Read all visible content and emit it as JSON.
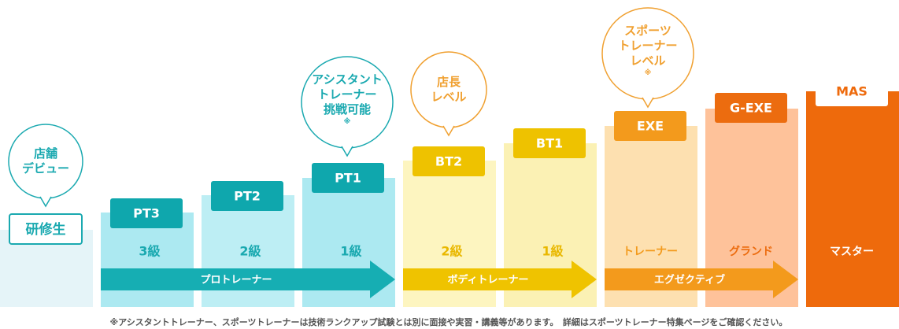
{
  "stages": [
    {
      "badge": "研修生"
    },
    {
      "badge": "PT3",
      "grade": "3級"
    },
    {
      "badge": "PT2",
      "grade": "2級"
    },
    {
      "badge": "PT1",
      "grade": "1級"
    },
    {
      "badge": "BT2",
      "grade": "2級"
    },
    {
      "badge": "BT1",
      "grade": "1級"
    },
    {
      "badge": "EXE",
      "grade": "トレーナー"
    },
    {
      "badge": "G-EXE",
      "grade": "グランド"
    },
    {
      "badge": "MAS",
      "grade": "マスター"
    }
  ],
  "tracks": [
    {
      "label": "プロトレーナー"
    },
    {
      "label": "ボディトレーナー"
    },
    {
      "label": "エグゼクティブ"
    }
  ],
  "bubbles": [
    {
      "lines": [
        "店舗",
        "デビュー"
      ]
    },
    {
      "lines": [
        "アシスタント",
        "トレーナー",
        "挑戦可能",
        "※"
      ]
    },
    {
      "lines": [
        "店長",
        "レベル"
      ]
    },
    {
      "lines": [
        "スポーツ",
        "トレーナー",
        "レベル",
        "※"
      ]
    }
  ],
  "footnote": "※アシスタントトレーナー、スポーツトレーナーは技術ランクアップ試験とは別に面接や実習・講義等があります。　詳細はスポーツトレーナー特集ページをご確認ください。"
}
